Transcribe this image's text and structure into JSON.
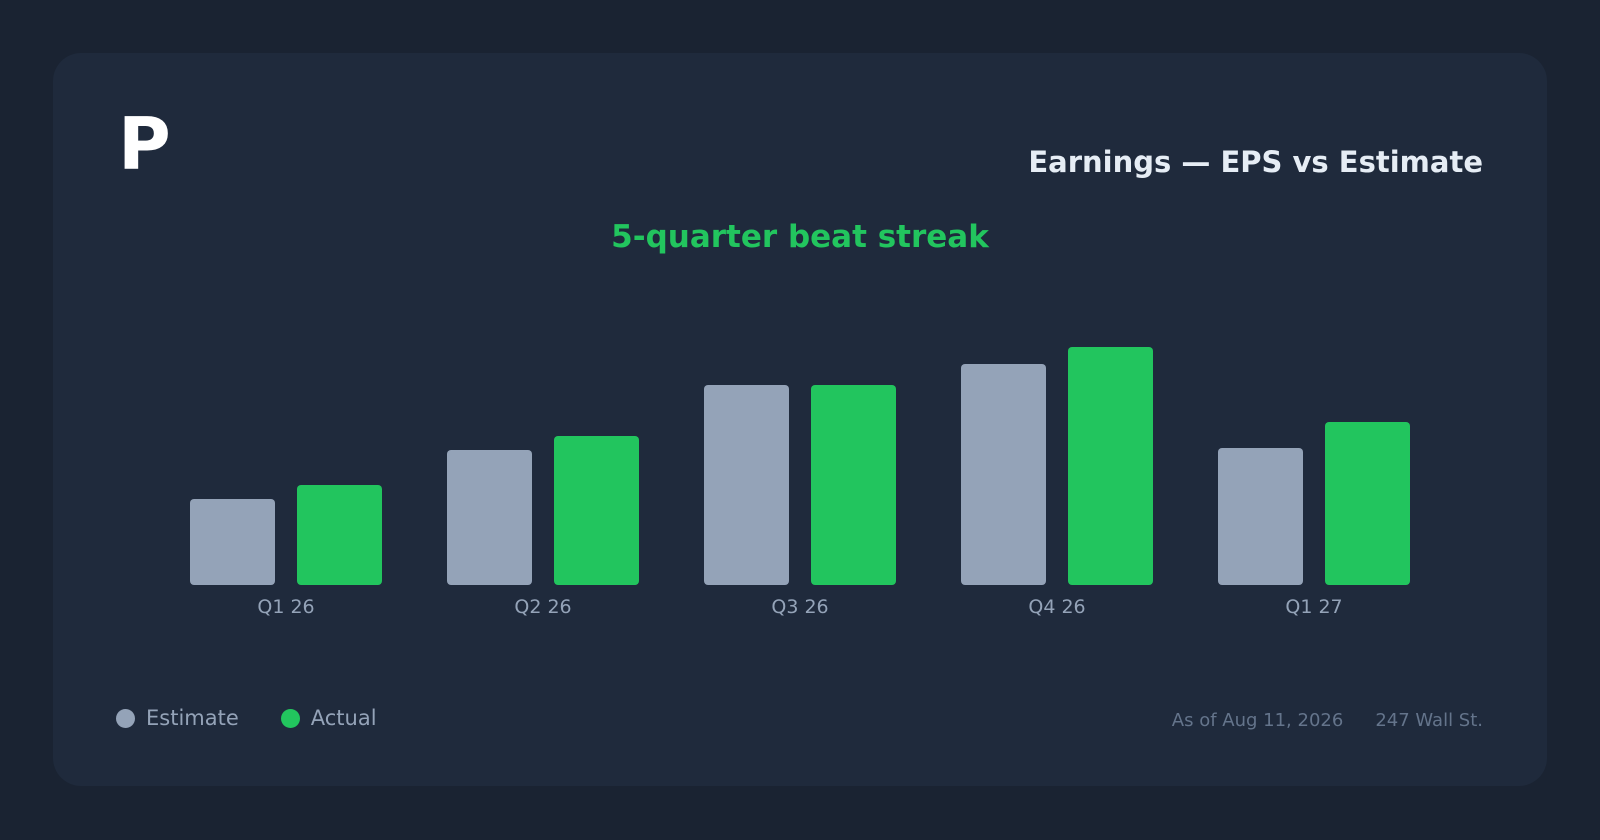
{
  "header": {
    "logo_text": "P",
    "title": "Earnings — EPS vs Estimate",
    "subtitle": "5-quarter beat streak"
  },
  "legend": [
    {
      "label": "Estimate",
      "color": "#94a3b8"
    },
    {
      "label": "Actual",
      "color": "#22c55e"
    }
  ],
  "footer": {
    "as_of": "As of Aug 11, 2026",
    "source": "247 Wall St."
  },
  "colors": {
    "background": "#1a2332",
    "card": "#1f2a3c",
    "estimate": "#94a3b8",
    "actual": "#22c55e"
  },
  "chart_data": {
    "type": "bar",
    "title": "Earnings — EPS vs Estimate",
    "subtitle": "5-quarter beat streak",
    "categories": [
      "Q1 26",
      "Q2 26",
      "Q3 26",
      "Q4 26",
      "Q1 27"
    ],
    "series": [
      {
        "name": "Estimate",
        "values": [
          0.86,
          1.35,
          2.0,
          2.21,
          1.37
        ]
      },
      {
        "name": "Actual",
        "values": [
          1.0,
          1.49,
          2.0,
          2.38,
          1.63
        ]
      }
    ],
    "ylim": [
      0,
      2.38
    ],
    "grid": false,
    "legend_position": "bottom-left"
  }
}
